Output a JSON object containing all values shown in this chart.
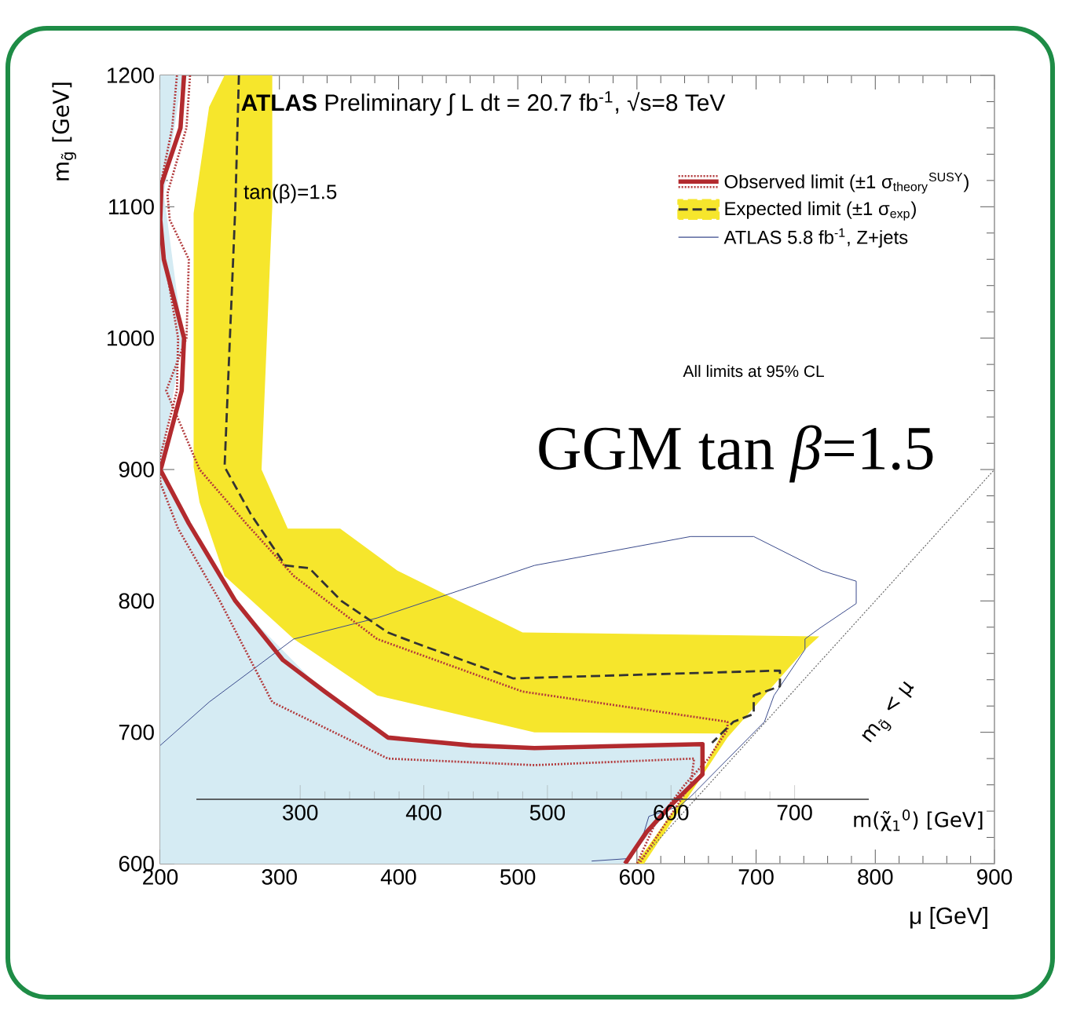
{
  "chart_data": {
    "type": "line",
    "title": "**ATLAS** Preliminary ∫ L dt = 20.7 fb$^{-1}$, √s=8 TeV",
    "xlabel": "μ [GeV]",
    "ylabel": "m$_{g̃}$ [GeV]",
    "x2label": "m(χ̃$_{1}$$^{0}$) [GeV]",
    "xlim": [
      200,
      900
    ],
    "ylim": [
      600,
      1200
    ],
    "xticks": [
      200,
      300,
      400,
      500,
      600,
      700,
      800,
      900
    ],
    "yticks": [
      600,
      700,
      800,
      900,
      1000,
      1100,
      1200
    ],
    "x2lim": [
      216,
      760
    ],
    "x2ticks": [
      300,
      400,
      500,
      600,
      700
    ],
    "legend": "top right",
    "annotations": [
      "tan(β)=1.5",
      "All limits at 95% CL",
      "GGM tan *β*=1.5",
      "m$_{g̃}$ < μ"
    ],
    "series": [
      {
        "type": "area",
        "color": "#d5ebf3",
        "x": [
          200,
          219,
          203,
          219,
          200,
          262,
          338,
          395,
          515,
          653,
          653,
          590,
          200
        ],
        "values": [
          1200,
          1200,
          1110,
          1000,
          900,
          800,
          730,
          695,
          689,
          690,
          670,
          600,
          600
        ]
      },
      {
        "type": "area",
        "color": "#f6e62c",
        "x": [
          294,
          294,
          285,
          307,
          351,
          399,
          504,
          753,
          741,
          676,
          606,
          599,
          658,
          671,
          514,
          382,
          312,
          254,
          233,
          228,
          228,
          241,
          254
        ],
        "values": [
          1200,
          1100,
          900,
          855,
          855,
          823,
          776,
          773,
          763,
          696,
          600,
          600,
          675,
          699,
          700,
          728,
          771,
          819,
          875,
          902,
          1095,
          1176,
          1200
        ]
      },
      {
        "color": "#666666",
        "line_style": "dotted",
        "x": [
          600,
          900
        ],
        "values": [
          600,
          900
        ]
      },
      {
        "name": "ATLAS 5.8 fb$^{-1}$, Z+jets",
        "color": "#3a4a8c",
        "line_style": "solid",
        "x": [
          200,
          241,
          312,
          382,
          514,
          645,
          698,
          755,
          784,
          784,
          753,
          741,
          741,
          715,
          707,
          645,
          636,
          610,
          606,
          595,
          562
        ],
        "values": [
          690,
          723,
          771,
          787,
          827,
          849,
          849,
          823,
          815,
          798,
          779,
          771,
          763,
          728,
          708,
          651,
          644,
          636,
          624,
          604,
          602
        ]
      },
      {
        "color": "#b23a3c",
        "line_style": "dotted",
        "x": [
          225,
          222,
          206,
          208,
          224,
          222,
          205,
          233,
          272,
          312,
          382,
          504,
          676,
          676,
          660,
          640,
          615,
          600
        ],
        "values": [
          1200,
          1160,
          1110,
          1090,
          1060,
          1000,
          960,
          900,
          859,
          819,
          771,
          731,
          708,
          702,
          680,
          660,
          630,
          600
        ]
      },
      {
        "color": "#b23a3c",
        "line_style": "dotted",
        "x": [
          214,
          210,
          201,
          200,
          200,
          215,
          214,
          200,
          200,
          215,
          250,
          294,
          391,
          514,
          648,
          645,
          602
        ],
        "values": [
          1200,
          1160,
          1120,
          1100,
          1080,
          1000,
          960,
          910,
          890,
          855,
          800,
          723,
          680,
          675,
          680,
          660,
          600
        ]
      },
      {
        "name": "Expected limit (±1 σ$_{exp}$)",
        "color": "#333333",
        "line_style": "dashed",
        "x": [
          266,
          263,
          254,
          276,
          305,
          325,
          352,
          391,
          417,
          496,
          720,
          720,
          698,
          698,
          681,
          663
        ],
        "values": [
          1200,
          1100,
          902,
          866,
          827,
          825,
          800,
          776,
          767,
          741,
          747,
          735,
          728,
          714,
          708,
          692
        ]
      },
      {
        "name": "Observed limit (±1 σ$_{theory}$$^{SUSY}$)",
        "color": "#b22a2e",
        "line_style": "solid",
        "x": [
          220,
          217,
          201,
          200,
          203,
          220,
          218,
          201,
          200,
          224,
          263,
          303,
          338,
          391,
          461,
          514,
          655,
          655,
          628,
          608,
          590
        ],
        "values": [
          1200,
          1160,
          1117,
          1090,
          1060,
          1000,
          960,
          902,
          900,
          859,
          800,
          755,
          731,
          696,
          690,
          688,
          691,
          668,
          644,
          624,
          600
        ]
      }
    ]
  }
}
